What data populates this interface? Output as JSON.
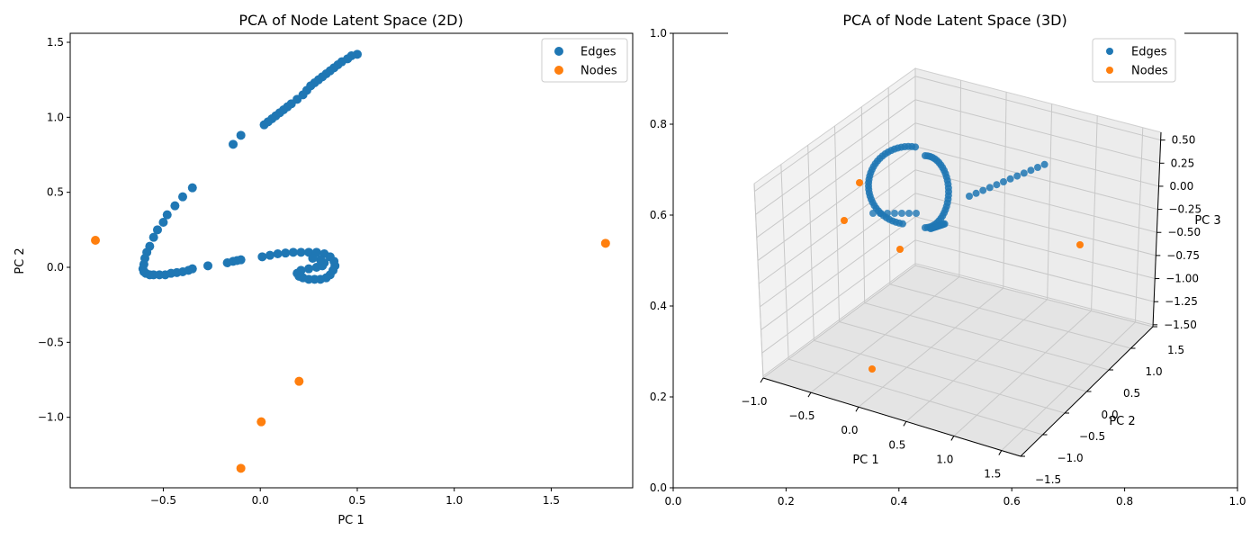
{
  "colors": {
    "edges": "#1f77b4",
    "nodes": "#ff7f0e",
    "pane": "#f2f2f2",
    "pane_dark": "#e6e6e6",
    "grid": "#c8c8c8"
  },
  "chart_data": [
    {
      "type": "scatter",
      "title": "PCA of Node Latent Space (2D)",
      "xlabel": "PC 1",
      "ylabel": "PC 2",
      "xlim": [
        -0.98,
        1.92
      ],
      "ylim": [
        -1.47,
        1.56
      ],
      "xticks": [
        -0.5,
        0.0,
        0.5,
        1.0,
        1.5
      ],
      "xtick_labels": [
        "−0.5",
        "0.0",
        "0.5",
        "1.0",
        "1.5"
      ],
      "yticks": [
        -1.0,
        -0.5,
        0.0,
        0.5,
        1.0,
        1.5
      ],
      "ytick_labels": [
        "−1.0",
        "−0.5",
        "0.0",
        "0.5",
        "1.0",
        "1.5"
      ],
      "legend_position": "top-right",
      "grid": false,
      "series": [
        {
          "name": "Edges",
          "x": [
            0.5,
            0.47,
            0.45,
            0.42,
            0.4,
            0.38,
            0.36,
            0.34,
            0.32,
            0.3,
            0.28,
            0.26,
            0.24,
            0.22,
            0.19,
            0.16,
            0.14,
            0.12,
            0.1,
            0.08,
            0.06,
            0.04,
            0.02,
            -0.1,
            -0.14,
            -0.35,
            -0.4,
            -0.44,
            -0.48,
            -0.5,
            -0.53,
            -0.55,
            -0.57,
            -0.585,
            -0.595,
            -0.6,
            -0.605,
            -0.6,
            -0.59,
            -0.57,
            -0.55,
            -0.52,
            -0.49,
            -0.46,
            -0.43,
            -0.4,
            -0.37,
            -0.35,
            -0.27,
            -0.17,
            -0.14,
            -0.12,
            -0.1,
            0.01,
            0.05,
            0.09,
            0.13,
            0.17,
            0.21,
            0.25,
            0.29,
            0.33,
            0.36,
            0.38,
            0.385,
            0.375,
            0.36,
            0.34,
            0.31,
            0.28,
            0.25,
            0.22,
            0.2,
            0.19,
            0.21,
            0.25,
            0.29,
            0.32,
            0.33,
            0.31,
            0.27
          ],
          "y": [
            1.42,
            1.41,
            1.39,
            1.37,
            1.35,
            1.33,
            1.31,
            1.29,
            1.27,
            1.25,
            1.23,
            1.21,
            1.18,
            1.15,
            1.12,
            1.09,
            1.07,
            1.05,
            1.03,
            1.01,
            0.99,
            0.97,
            0.95,
            0.88,
            0.82,
            0.53,
            0.47,
            0.41,
            0.35,
            0.3,
            0.25,
            0.2,
            0.14,
            0.1,
            0.06,
            0.02,
            -0.01,
            -0.03,
            -0.04,
            -0.05,
            -0.05,
            -0.05,
            -0.05,
            -0.04,
            -0.035,
            -0.03,
            -0.02,
            -0.01,
            0.01,
            0.03,
            0.04,
            0.045,
            0.05,
            0.07,
            0.08,
            0.09,
            0.095,
            0.1,
            0.1,
            0.1,
            0.1,
            0.09,
            0.07,
            0.04,
            0.01,
            -0.02,
            -0.05,
            -0.07,
            -0.08,
            -0.08,
            -0.08,
            -0.07,
            -0.06,
            -0.04,
            -0.02,
            -0.01,
            0.0,
            0.01,
            0.03,
            0.05,
            0.06
          ]
        },
        {
          "name": "Nodes",
          "x": [
            -0.85,
            1.78,
            0.2,
            0.005,
            -0.1
          ],
          "y": [
            0.18,
            0.16,
            -0.76,
            -1.03,
            -1.34
          ]
        }
      ]
    },
    {
      "type": "scatter",
      "title": "PCA of Node Latent Space (3D)",
      "xlabel": "PC 1",
      "ylabel": "PC 2",
      "zlabel": "PC 3",
      "legend_position": "top-right",
      "outer_xticks": [
        "0.0",
        "0.2",
        "0.4",
        "0.6",
        "0.8",
        "1.0"
      ],
      "outer_yticks": [
        "0.0",
        "0.2",
        "0.4",
        "0.6",
        "0.8",
        "1.0"
      ],
      "x_tick_labels": [
        "−1.0",
        "−0.5",
        "0.0",
        "0.5",
        "1.0",
        "1.5"
      ],
      "y_tick_labels": [
        "−1.5",
        "−1.0",
        "−0.5",
        "0.0",
        "0.5",
        "1.0",
        "1.5"
      ],
      "z_tick_labels": [
        "0.50",
        "0.25",
        "0.00",
        "−0.25",
        "−0.50",
        "−0.75",
        "−1.00",
        "−1.25",
        "−1.50"
      ],
      "series": [
        {
          "name": "Edges"
        },
        {
          "name": "Nodes"
        }
      ]
    }
  ]
}
